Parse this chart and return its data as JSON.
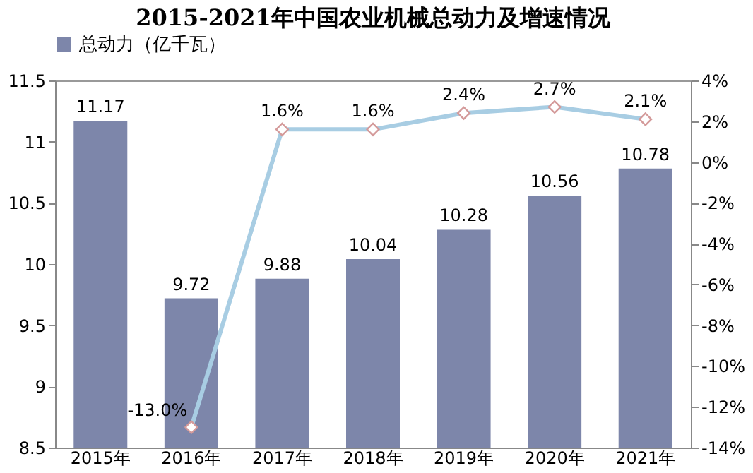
{
  "chart_data": {
    "type": "bar",
    "title": "2015-2021年中国农业机械总动力及增速情况",
    "categories": [
      "2015年",
      "2016年",
      "2017年",
      "2018年",
      "2019年",
      "2020年",
      "2021年"
    ],
    "series": [
      {
        "name": "总动力（亿千瓦）",
        "color": "#7d86aa",
        "values": [
          11.17,
          9.72,
          9.88,
          10.04,
          10.28,
          10.56,
          10.78
        ],
        "value_labels": [
          "11.17",
          "9.72",
          "9.88",
          "10.04",
          "10.28",
          "10.56",
          "10.78"
        ]
      },
      {
        "type": "line",
        "axis": "y2",
        "color": "#a8cde3",
        "marker": "diamond",
        "values": [
          null,
          -13.0,
          1.6,
          1.6,
          2.4,
          2.7,
          2.1
        ],
        "value_labels": [
          null,
          "-13.0%",
          "1.6%",
          "1.6%",
          "2.4%",
          "2.7%",
          "2.1%"
        ]
      }
    ],
    "ylim": [
      8.5,
      11.5
    ],
    "yticks": [
      8.5,
      9,
      9.5,
      10,
      10.5,
      11,
      11.5
    ],
    "y2lim": [
      -14,
      4
    ],
    "y2ticks": [
      {
        "value": -14,
        "label": "-14%"
      },
      {
        "value": -12,
        "label": "-12%"
      },
      {
        "value": -10,
        "label": "-10%"
      },
      {
        "value": -8,
        "label": "-8%"
      },
      {
        "value": -6,
        "label": "-6%"
      },
      {
        "value": -4,
        "label": "-4%"
      },
      {
        "value": -2,
        "label": "-2%"
      },
      {
        "value": 0,
        "label": "0%"
      },
      {
        "value": 2,
        "label": "2%"
      },
      {
        "value": 4,
        "label": "4%"
      }
    ],
    "grid": false,
    "legend": "top"
  }
}
